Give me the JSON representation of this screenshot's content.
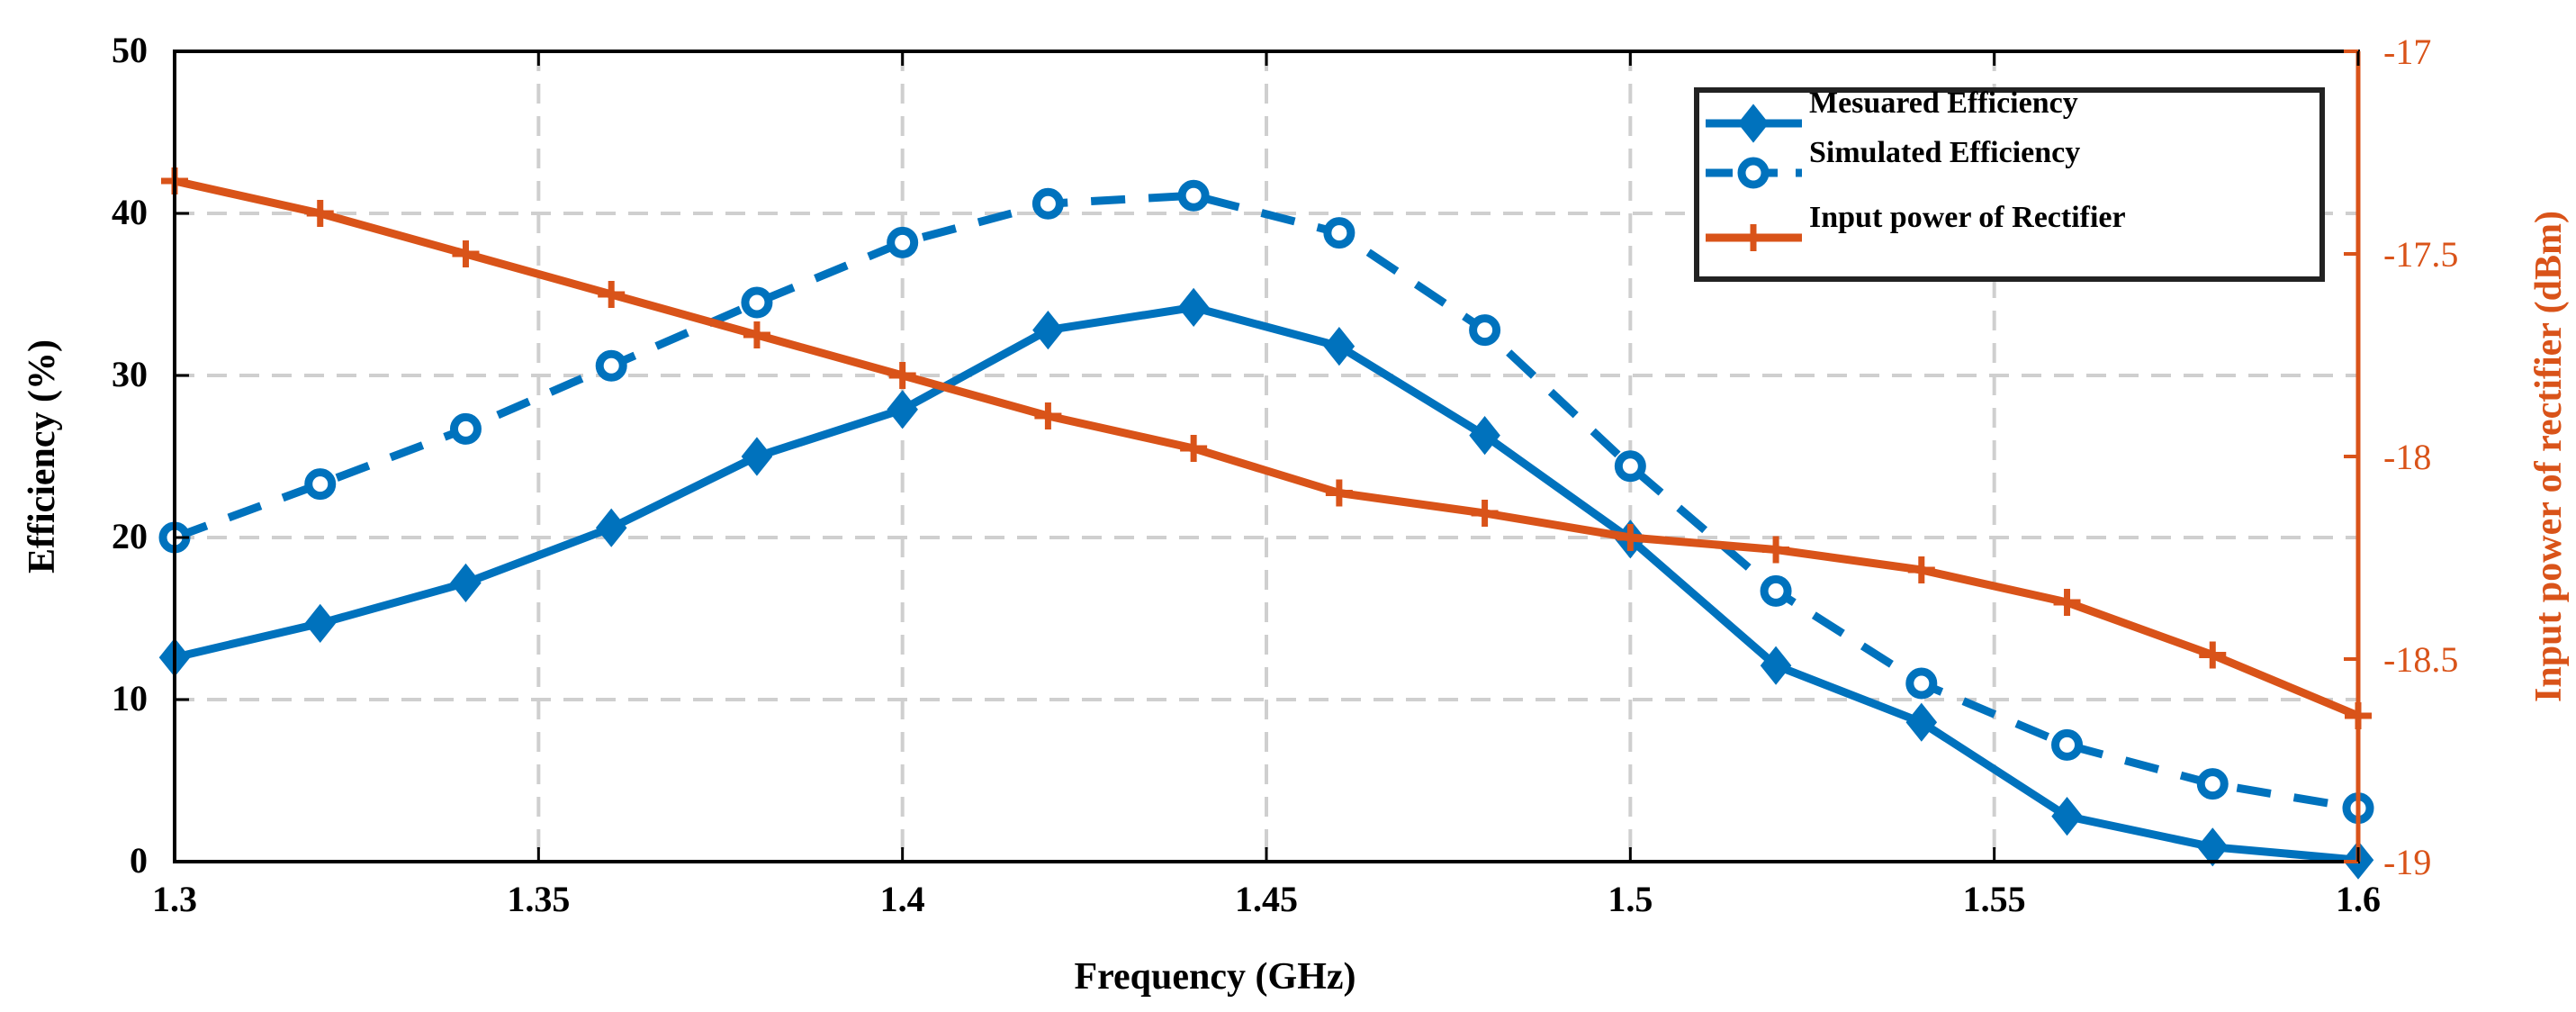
{
  "chart_data": {
    "type": "line",
    "title": "",
    "xlabel": "Frequency (GHz)",
    "ylabel": "Efficiency (%)",
    "ylabel_right": "Input power of rectifier (dBm)",
    "xlim": [
      1.3,
      1.6
    ],
    "ylim": [
      0,
      50
    ],
    "ylim_right": [
      -19,
      -17
    ],
    "x_ticks": [
      "1.3",
      "1.35",
      "1.4",
      "1.45",
      "1.5",
      "1.55",
      "1.6"
    ],
    "y_ticks": [
      "0",
      "10",
      "20",
      "30",
      "40",
      "50"
    ],
    "y_ticks_right": [
      "-19",
      "-18.5",
      "-18",
      "-17.5",
      "-17"
    ],
    "grid": true,
    "legend_position": "top-right",
    "x": [
      1.3,
      1.32,
      1.34,
      1.36,
      1.38,
      1.4,
      1.42,
      1.44,
      1.46,
      1.48,
      1.5,
      1.52,
      1.54,
      1.56,
      1.58,
      1.6
    ],
    "series": [
      {
        "name": "Mesuared Efficiency",
        "axis": "left",
        "marker": "diamond",
        "line": "solid",
        "color": "#0072BD",
        "values": [
          12.6,
          14.7,
          17.2,
          20.6,
          25.0,
          27.9,
          32.8,
          34.2,
          31.8,
          26.3,
          19.9,
          12.1,
          8.6,
          2.8,
          0.9,
          0.1
        ]
      },
      {
        "name": "Simulated Efficiency",
        "axis": "left",
        "marker": "circle",
        "line": "dashed",
        "color": "#0072BD",
        "values": [
          20.0,
          23.3,
          26.7,
          30.6,
          34.5,
          38.2,
          40.6,
          41.1,
          38.8,
          32.8,
          24.4,
          16.7,
          11.0,
          7.2,
          4.8,
          3.3
        ]
      },
      {
        "name": "Input power of Rectifier",
        "axis": "right",
        "marker": "plus",
        "line": "solid",
        "color": "#D95319",
        "values": [
          -17.32,
          -17.4,
          -17.5,
          -17.6,
          -17.7,
          -17.8,
          -17.9,
          -17.98,
          -18.09,
          -18.14,
          -18.2,
          -18.23,
          -18.28,
          -18.36,
          -18.49,
          -18.64
        ]
      }
    ]
  }
}
